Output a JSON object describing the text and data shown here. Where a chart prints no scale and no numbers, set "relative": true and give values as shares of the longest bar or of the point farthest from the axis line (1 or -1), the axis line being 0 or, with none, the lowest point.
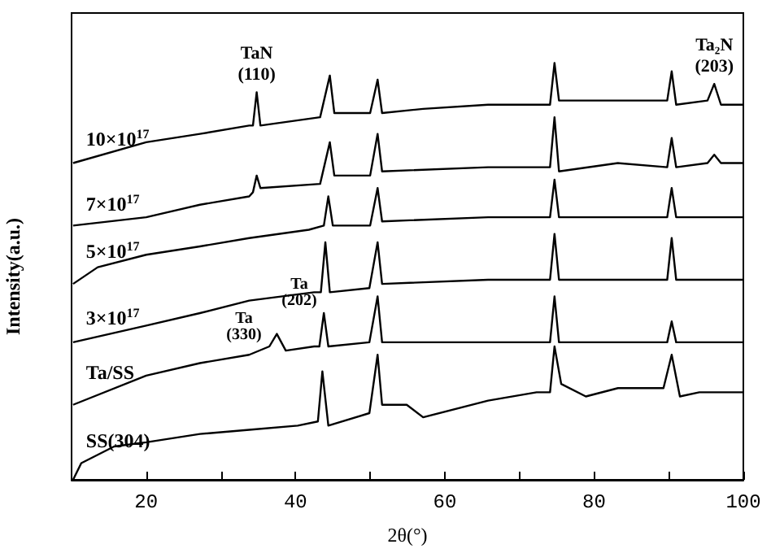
{
  "chart_data": {
    "type": "line",
    "relative": true,
    "xlabel": "2θ(°)",
    "ylabel": "Intensity(a.u.)",
    "xlim": [
      10,
      100
    ],
    "xticks": [
      20,
      {
        "value": 30,
        "label": null
      },
      40,
      {
        "value": 50,
        "label": null
      },
      60,
      {
        "value": 70,
        "label": null
      },
      80,
      {
        "value": 90,
        "label": null
      },
      100
    ],
    "grid": false,
    "legend": false,
    "marker": "none",
    "line_style": "solid",
    "annotations": [
      {
        "text": "TaN (110)",
        "x": 34.8,
        "y": 0.93
      },
      {
        "text": "Ta₂N (203)",
        "x": 96.1,
        "y": 0.95
      },
      "Ta (330)",
      "Ta (202)"
    ],
    "series": [
      {
        "name": "10×10$^{17}$",
        "color": "#000000",
        "x": [
          10.2,
          20,
          27.2,
          33.8,
          34.3,
          34.8,
          35.3,
          43.3,
          44.6,
          45.2,
          50,
          51,
          51.6,
          57.1,
          65.8,
          74.1,
          74.7,
          75.3,
          89.8,
          90.4,
          91,
          95.2,
          96.1,
          97,
          100
        ],
        "values": [
          0.76,
          0.81,
          0.83,
          0.85,
          0.85,
          0.93,
          0.85,
          0.87,
          0.97,
          0.88,
          0.88,
          0.96,
          0.88,
          0.89,
          0.9,
          0.9,
          1,
          0.91,
          0.91,
          0.98,
          0.9,
          0.91,
          0.95,
          0.9,
          0.9
        ]
      },
      {
        "name": "7×10$^{17}$",
        "color": "#000000",
        "x": [
          10.2,
          20,
          27.2,
          33.8,
          34.3,
          34.8,
          35.3,
          43.3,
          44.6,
          45.2,
          50,
          51,
          51.6,
          65.8,
          74.1,
          74.7,
          75.3,
          83.2,
          89.8,
          90.4,
          91,
          95.2,
          96.1,
          97,
          100
        ],
        "values": [
          0.61,
          0.63,
          0.66,
          0.68,
          0.69,
          0.73,
          0.7,
          0.71,
          0.81,
          0.73,
          0.73,
          0.83,
          0.74,
          0.75,
          0.75,
          0.87,
          0.74,
          0.76,
          0.75,
          0.82,
          0.75,
          0.76,
          0.78,
          0.76,
          0.76
        ]
      },
      {
        "name": "5×10$^{17}$",
        "color": "#000000",
        "x": [
          10.2,
          13.5,
          20,
          27.2,
          33.8,
          41.8,
          43.8,
          44.4,
          45,
          50,
          51,
          51.6,
          65.8,
          74.1,
          74.7,
          75.3,
          89.8,
          90.4,
          91,
          100
        ],
        "values": [
          0.47,
          0.51,
          0.54,
          0.56,
          0.58,
          0.6,
          0.61,
          0.68,
          0.61,
          0.61,
          0.7,
          0.62,
          0.63,
          0.63,
          0.72,
          0.63,
          0.63,
          0.7,
          0.63,
          0.63
        ]
      },
      {
        "name": "3×10$^{17}$",
        "color": "#000000",
        "x": [
          10.2,
          20,
          27.2,
          33.8,
          42.5,
          43.4,
          44,
          44.6,
          49.9,
          51,
          51.6,
          65.8,
          74.1,
          74.7,
          75.3,
          89.8,
          90.4,
          91,
          100
        ],
        "values": [
          0.33,
          0.37,
          0.4,
          0.43,
          0.45,
          0.45,
          0.57,
          0.45,
          0.46,
          0.57,
          0.47,
          0.48,
          0.48,
          0.59,
          0.48,
          0.48,
          0.58,
          0.48,
          0.48
        ]
      },
      {
        "name": "Ta/SS",
        "color": "#000000",
        "x": [
          10.2,
          20,
          27.2,
          33.8,
          36.5,
          37.5,
          38.7,
          42.5,
          43.2,
          43.8,
          44.4,
          49.9,
          51,
          51.6,
          61.4,
          74.1,
          74.7,
          75.3,
          87.6,
          89.8,
          90.4,
          91,
          100
        ],
        "values": [
          0.18,
          0.25,
          0.28,
          0.3,
          0.32,
          0.35,
          0.31,
          0.32,
          0.32,
          0.4,
          0.32,
          0.33,
          0.44,
          0.33,
          0.33,
          0.33,
          0.44,
          0.33,
          0.33,
          0.33,
          0.38,
          0.33,
          0.33
        ]
      },
      {
        "name": "SS(304)",
        "color": "#000000",
        "x": [
          10.2,
          11.3,
          15.7,
          20,
          27.2,
          33.8,
          40.3,
          43,
          43.6,
          44.4,
          49.9,
          51,
          51.6,
          54.9,
          57.1,
          65.8,
          72.3,
          74.1,
          74.7,
          75.6,
          78.9,
          83.2,
          89.3,
          90.4,
          91.5,
          94.1,
          100
        ],
        "values": [
          0,
          0.04,
          0.08,
          0.09,
          0.11,
          0.12,
          0.13,
          0.14,
          0.26,
          0.13,
          0.16,
          0.3,
          0.18,
          0.18,
          0.15,
          0.19,
          0.21,
          0.21,
          0.32,
          0.23,
          0.2,
          0.22,
          0.22,
          0.3,
          0.2,
          0.21,
          0.21
        ]
      }
    ]
  }
}
